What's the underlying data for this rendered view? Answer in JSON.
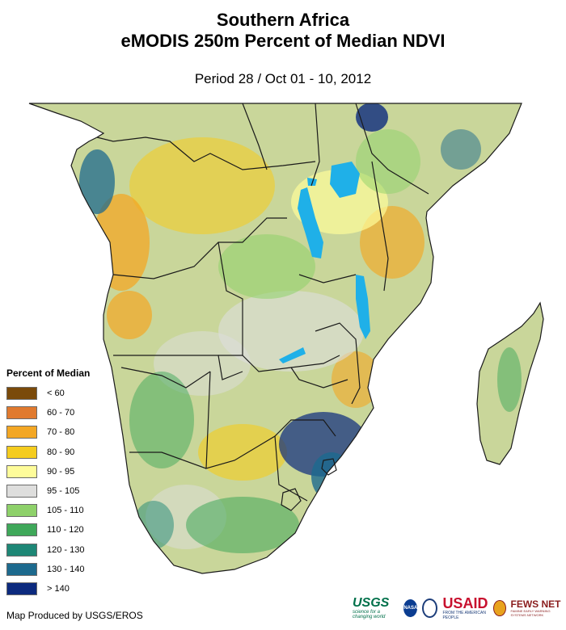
{
  "title": {
    "line1": "Southern Africa",
    "line2": "eMODIS 250m Percent of Median NDVI",
    "period": "Period 28 / Oct 01 - 10, 2012"
  },
  "legend": {
    "title": "Percent of Median",
    "items": [
      {
        "label": "< 60",
        "color": "#7a4a0a"
      },
      {
        "label": "60 - 70",
        "color": "#e07a2f"
      },
      {
        "label": "70 - 80",
        "color": "#f3a724"
      },
      {
        "label": "80 - 90",
        "color": "#f5cc1e"
      },
      {
        "label": "90 - 95",
        "color": "#fefc9a"
      },
      {
        "label": "95 - 105",
        "color": "#dededd"
      },
      {
        "label": "105 - 110",
        "color": "#8ed16a"
      },
      {
        "label": "110 - 120",
        "color": "#3fa85a"
      },
      {
        "label": "120 - 130",
        "color": "#1e8776"
      },
      {
        "label": "130 - 140",
        "color": "#1d6a8e"
      },
      {
        "label": "> 140",
        "color": "#0c2a7e"
      }
    ]
  },
  "credit": "Map Produced by USGS/EROS",
  "logos": {
    "usgs": "USGS",
    "usgs_tagline": "science for a changing world",
    "nasa": "NASA",
    "usaid": "USAID",
    "usaid_tagline": "FROM THE AMERICAN PEOPLE",
    "fews": "FEWS NET",
    "fews_tagline": "FAMINE EARLY WARNING SYSTEMS NETWORK"
  },
  "colors": {
    "land_base": "#c9d69a",
    "water": "#1fb0e8",
    "border": "#1a1a1a"
  }
}
